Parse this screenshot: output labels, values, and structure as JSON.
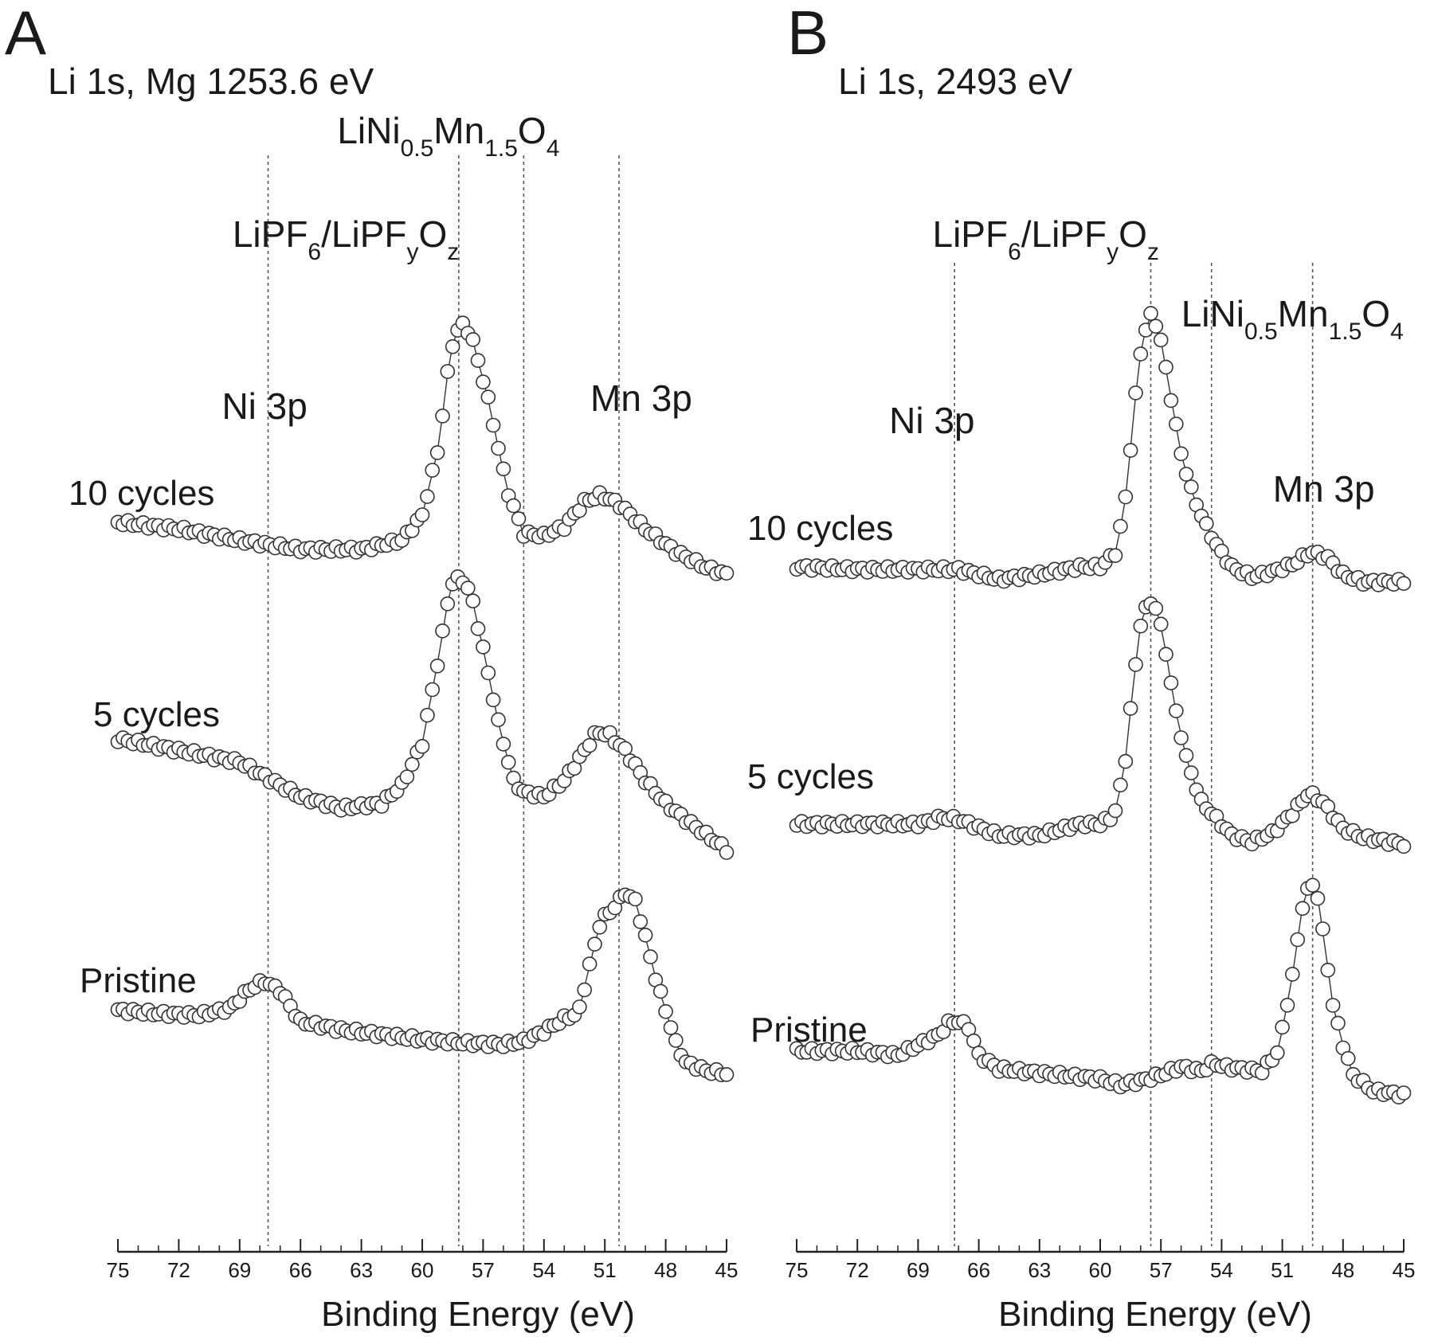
{
  "chart_data": [
    {
      "type": "scatter",
      "panel_letter": "A",
      "title": "Li 1s, Mg 1253.6 eV",
      "xlabel": "Binding Energy (eV)",
      "ylabel": "",
      "xlim": [
        75,
        45
      ],
      "x_reversed": true,
      "x_ticks": [
        75,
        72,
        69,
        66,
        63,
        60,
        57,
        54,
        51,
        48,
        45
      ],
      "y_ticks": false,
      "grid": false,
      "reference_lines": [
        {
          "name": "Ni 3p",
          "label_main": "Ni 3p",
          "x": 67.6
        },
        {
          "name": "LiPF6/LiPFyOz",
          "label_main": "LiPF",
          "label_sub1": "6",
          "label_mid": "/LiPF",
          "label_sub2": "y",
          "label_main2": "O",
          "label_sub3": "z",
          "x": 58.2
        },
        {
          "name": "LiNi0.5Mn1.5O4",
          "label_main": "LiNi",
          "label_sub1": "0.5",
          "label_mid": "Mn",
          "label_sub2": "1.5",
          "label_main2": "O",
          "label_sub3": "4",
          "x": 55.0
        },
        {
          "name": "Mn 3p",
          "label_main": "Mn 3p",
          "x": 50.3
        }
      ],
      "series": [
        {
          "name": "10 cycles",
          "points": [
            [
              75,
              0.12
            ],
            [
              72,
              0.09
            ],
            [
              69,
              0.04
            ],
            [
              66,
              0.0
            ],
            [
              63,
              0.0
            ],
            [
              61,
              0.04
            ],
            [
              60,
              0.15
            ],
            [
              59.2,
              0.45
            ],
            [
              58.6,
              0.88
            ],
            [
              58.1,
              1.0
            ],
            [
              57.6,
              0.95
            ],
            [
              56.8,
              0.68
            ],
            [
              55.8,
              0.26
            ],
            [
              55.0,
              0.07
            ],
            [
              54.0,
              0.06
            ],
            [
              53.0,
              0.1
            ],
            [
              52.0,
              0.21
            ],
            [
              51.2,
              0.24
            ],
            [
              50.3,
              0.2
            ],
            [
              49.0,
              0.09
            ],
            [
              47.5,
              -0.01
            ],
            [
              46.0,
              -0.08
            ],
            [
              45.0,
              -0.11
            ]
          ]
        },
        {
          "name": "5 cycles",
          "points": [
            [
              75,
              0.3
            ],
            [
              72,
              0.25
            ],
            [
              69,
              0.2
            ],
            [
              66,
              0.05
            ],
            [
              64,
              0.0
            ],
            [
              62,
              0.02
            ],
            [
              61,
              0.1
            ],
            [
              60,
              0.28
            ],
            [
              59.2,
              0.65
            ],
            [
              58.6,
              0.97
            ],
            [
              58.1,
              1.0
            ],
            [
              57.6,
              0.93
            ],
            [
              56.9,
              0.65
            ],
            [
              56.2,
              0.35
            ],
            [
              55.5,
              0.12
            ],
            [
              55.0,
              0.07
            ],
            [
              54.0,
              0.05
            ],
            [
              53.0,
              0.12
            ],
            [
              52.0,
              0.25
            ],
            [
              51.4,
              0.33
            ],
            [
              50.8,
              0.32
            ],
            [
              50.0,
              0.25
            ],
            [
              49.0,
              0.12
            ],
            [
              48.0,
              0.02
            ],
            [
              47.0,
              -0.05
            ],
            [
              45.0,
              -0.18
            ]
          ]
        },
        {
          "name": "Pristine",
          "points": [
            [
              75,
              0.25
            ],
            [
              73,
              0.23
            ],
            [
              71,
              0.22
            ],
            [
              69.5,
              0.26
            ],
            [
              68.5,
              0.38
            ],
            [
              67.8,
              0.43
            ],
            [
              67.0,
              0.37
            ],
            [
              66.0,
              0.18
            ],
            [
              64,
              0.13
            ],
            [
              62,
              0.1
            ],
            [
              60,
              0.07
            ],
            [
              58,
              0.05
            ],
            [
              56,
              0.04
            ],
            [
              55,
              0.06
            ],
            [
              54,
              0.12
            ],
            [
              53,
              0.2
            ],
            [
              52.3,
              0.23
            ],
            [
              51.8,
              0.5
            ],
            [
              51.2,
              0.8
            ],
            [
              50.6,
              0.87
            ],
            [
              50.0,
              0.97
            ],
            [
              49.5,
              0.92
            ],
            [
              49.0,
              0.7
            ],
            [
              48.5,
              0.45
            ],
            [
              48.0,
              0.25
            ],
            [
              47.5,
              0.05
            ],
            [
              47.0,
              -0.07
            ],
            [
              46.0,
              -0.12
            ],
            [
              45.0,
              -0.14
            ]
          ]
        }
      ]
    },
    {
      "type": "scatter",
      "panel_letter": "B",
      "title": "Li 1s, 2493 eV",
      "xlabel": "Binding Energy (eV)",
      "ylabel": "",
      "xlim": [
        75,
        45
      ],
      "x_reversed": true,
      "x_ticks": [
        75,
        72,
        69,
        66,
        63,
        60,
        57,
        54,
        51,
        48,
        45
      ],
      "y_ticks": false,
      "grid": false,
      "reference_lines": [
        {
          "name": "Ni 3p",
          "label_main": "Ni 3p",
          "x": 67.2
        },
        {
          "name": "LiPF6/LiPFyOz",
          "label_main": "LiPF",
          "label_sub1": "6",
          "label_mid": "/LiPF",
          "label_sub2": "y",
          "label_main2": "O",
          "label_sub3": "z",
          "x": 57.5
        },
        {
          "name": "LiNi0.5Mn1.5O4",
          "label_main": "LiNi",
          "label_sub1": "0.5",
          "label_mid": "Mn",
          "label_sub2": "1.5",
          "label_main2": "O",
          "label_sub3": "4",
          "x": 54.5
        },
        {
          "name": "Mn 3p",
          "label_main": "Mn 3p",
          "x": 49.5
        }
      ],
      "series": [
        {
          "name": "10 cycles",
          "points": [
            [
              75,
              0.0
            ],
            [
              72,
              -0.01
            ],
            [
              69,
              -0.01
            ],
            [
              67,
              -0.01
            ],
            [
              65,
              -0.05
            ],
            [
              63,
              -0.03
            ],
            [
              61,
              0.0
            ],
            [
              60,
              0.0
            ],
            [
              59.2,
              0.06
            ],
            [
              58.7,
              0.3
            ],
            [
              58.3,
              0.65
            ],
            [
              57.9,
              0.92
            ],
            [
              57.5,
              1.0
            ],
            [
              57.1,
              0.95
            ],
            [
              56.6,
              0.72
            ],
            [
              56.0,
              0.45
            ],
            [
              55.4,
              0.28
            ],
            [
              54.8,
              0.17
            ],
            [
              54.2,
              0.08
            ],
            [
              53.5,
              0.0
            ],
            [
              52.5,
              -0.04
            ],
            [
              51.5,
              -0.02
            ],
            [
              50.5,
              0.01
            ],
            [
              49.6,
              0.06
            ],
            [
              48.8,
              0.04
            ],
            [
              48.0,
              -0.03
            ],
            [
              47.0,
              -0.06
            ],
            [
              45.0,
              -0.06
            ]
          ]
        },
        {
          "name": "5 cycles",
          "points": [
            [
              75,
              0.0
            ],
            [
              72,
              0.0
            ],
            [
              69,
              0.0
            ],
            [
              67.8,
              0.03
            ],
            [
              67.0,
              0.02
            ],
            [
              65,
              -0.05
            ],
            [
              63,
              -0.05
            ],
            [
              61,
              0.0
            ],
            [
              60,
              0.0
            ],
            [
              59.3,
              0.04
            ],
            [
              58.8,
              0.25
            ],
            [
              58.4,
              0.6
            ],
            [
              58.0,
              0.9
            ],
            [
              57.6,
              1.0
            ],
            [
              57.2,
              0.97
            ],
            [
              56.8,
              0.8
            ],
            [
              56.3,
              0.52
            ],
            [
              55.7,
              0.28
            ],
            [
              55.0,
              0.1
            ],
            [
              54.3,
              0.03
            ],
            [
              53.5,
              -0.05
            ],
            [
              52.5,
              -0.08
            ],
            [
              51.5,
              -0.04
            ],
            [
              50.5,
              0.05
            ],
            [
              49.7,
              0.14
            ],
            [
              49.0,
              0.1
            ],
            [
              48.0,
              -0.02
            ],
            [
              47.0,
              -0.06
            ],
            [
              45.0,
              -0.09
            ]
          ]
        },
        {
          "name": "Pristine",
          "points": [
            [
              75,
              0.12
            ],
            [
              72,
              0.12
            ],
            [
              70,
              0.1
            ],
            [
              69,
              0.15
            ],
            [
              68,
              0.2
            ],
            [
              67.5,
              0.26
            ],
            [
              67.0,
              0.27
            ],
            [
              66.5,
              0.24
            ],
            [
              66.0,
              0.1
            ],
            [
              65,
              0.03
            ],
            [
              62,
              0.0
            ],
            [
              60,
              -0.02
            ],
            [
              59,
              -0.05
            ],
            [
              58,
              -0.03
            ],
            [
              57,
              0.0
            ],
            [
              56,
              0.04
            ],
            [
              55,
              0.02
            ],
            [
              54.4,
              0.06
            ],
            [
              53.8,
              0.04
            ],
            [
              53,
              0.03
            ],
            [
              52,
              0.02
            ],
            [
              51.2,
              0.12
            ],
            [
              50.5,
              0.5
            ],
            [
              50.0,
              0.85
            ],
            [
              49.6,
              0.97
            ],
            [
              49.3,
              0.93
            ],
            [
              48.9,
              0.65
            ],
            [
              48.5,
              0.35
            ],
            [
              48.0,
              0.15
            ],
            [
              47.5,
              0.0
            ],
            [
              46.5,
              -0.08
            ],
            [
              45.0,
              -0.1
            ]
          ]
        }
      ]
    }
  ]
}
